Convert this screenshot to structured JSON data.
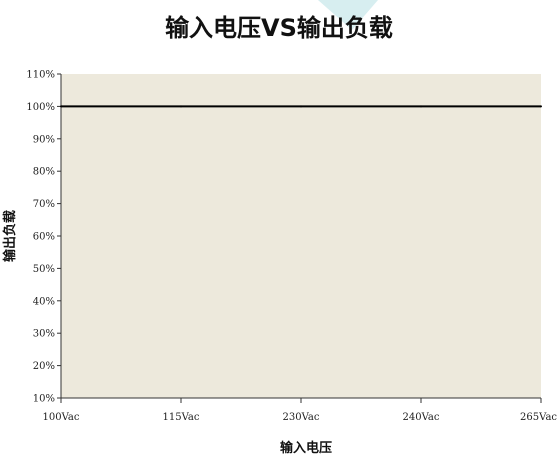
{
  "colors": {
    "plot_background": "#ede9dc",
    "axis": "#333333",
    "series_line": "#000000",
    "watermark": "#d7eef0"
  },
  "chart_data": {
    "type": "line",
    "title": "输入电压VS输出负载",
    "xlabel": "输入电压",
    "ylabel": "输出负载",
    "categories": [
      "100Vac",
      "115Vac",
      "230Vac",
      "240Vac",
      "265Vac"
    ],
    "y_ticks": [
      "10%",
      "20%",
      "30%",
      "40%",
      "50%",
      "60%",
      "70%",
      "80%",
      "90%",
      "100%",
      "110%"
    ],
    "ylim": [
      10,
      110
    ],
    "y_unit": "%",
    "grid": false,
    "series": [
      {
        "values": [
          100,
          100,
          100,
          100,
          100
        ]
      }
    ]
  }
}
